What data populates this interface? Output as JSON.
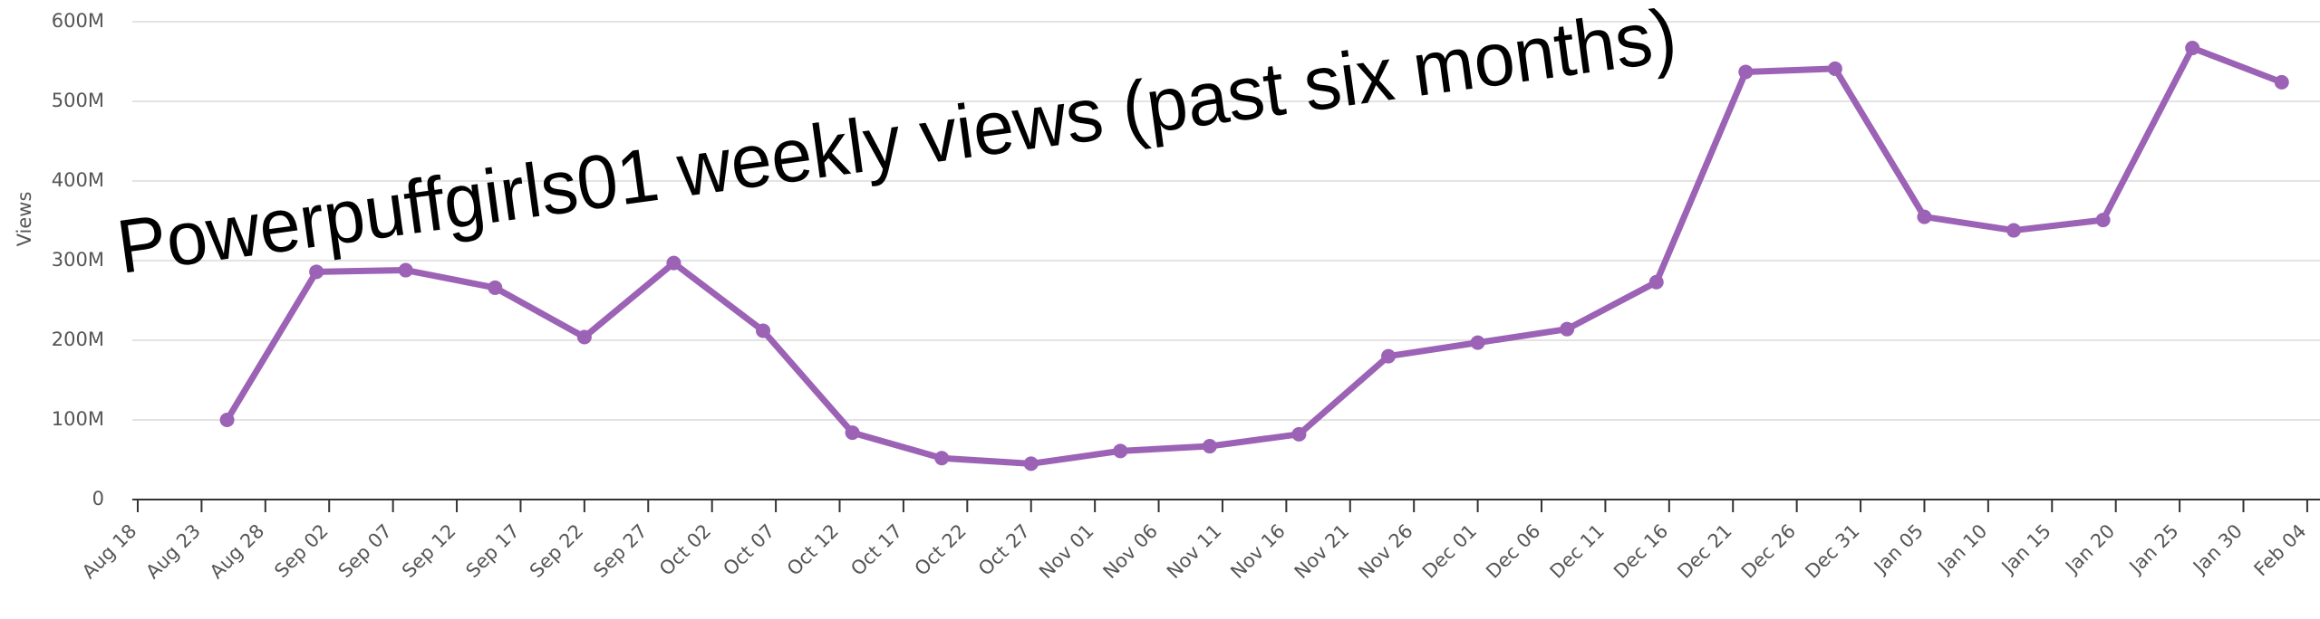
{
  "chart_data": {
    "type": "line",
    "title": "Powerpuffgirls01 weekly views (past six months)",
    "y_label": "Views",
    "x": [
      7,
      14,
      21,
      28,
      35,
      42,
      49,
      56,
      63,
      70,
      77,
      84,
      91,
      98,
      105,
      112,
      119,
      126,
      133,
      140,
      147,
      154,
      161,
      168
    ],
    "series": [
      {
        "name": "Views",
        "color": "#9b62b5",
        "values": [
          100000000,
          286000000,
          288000000,
          266000000,
          204000000,
          297000000,
          212000000,
          84000000,
          52000000,
          45000000,
          61000000,
          67000000,
          82000000,
          180000000,
          197000000,
          214000000,
          273000000,
          537000000,
          541000000,
          355000000,
          338000000,
          351000000,
          567000000,
          524000000
        ]
      }
    ],
    "xlim": [
      0,
      171
    ],
    "xticks": [
      {
        "value": 0,
        "label": "Aug 18"
      },
      {
        "value": 5,
        "label": "Aug 23"
      },
      {
        "value": 10,
        "label": "Aug 28"
      },
      {
        "value": 15,
        "label": "Sep 02"
      },
      {
        "value": 20,
        "label": "Sep 07"
      },
      {
        "value": 25,
        "label": "Sep 12"
      },
      {
        "value": 30,
        "label": "Sep 17"
      },
      {
        "value": 35,
        "label": "Sep 22"
      },
      {
        "value": 40,
        "label": "Sep 27"
      },
      {
        "value": 45,
        "label": "Oct 02"
      },
      {
        "value": 50,
        "label": "Oct 07"
      },
      {
        "value": 55,
        "label": "Oct 12"
      },
      {
        "value": 60,
        "label": "Oct 17"
      },
      {
        "value": 65,
        "label": "Oct 22"
      },
      {
        "value": 70,
        "label": "Oct 27"
      },
      {
        "value": 75,
        "label": "Nov 01"
      },
      {
        "value": 80,
        "label": "Nov 06"
      },
      {
        "value": 85,
        "label": "Nov 11"
      },
      {
        "value": 90,
        "label": "Nov 16"
      },
      {
        "value": 95,
        "label": "Nov 21"
      },
      {
        "value": 100,
        "label": "Nov 26"
      },
      {
        "value": 105,
        "label": "Dec 01"
      },
      {
        "value": 110,
        "label": "Dec 06"
      },
      {
        "value": 115,
        "label": "Dec 11"
      },
      {
        "value": 120,
        "label": "Dec 16"
      },
      {
        "value": 125,
        "label": "Dec 21"
      },
      {
        "value": 130,
        "label": "Dec 26"
      },
      {
        "value": 135,
        "label": "Dec 31"
      },
      {
        "value": 140,
        "label": "Jan 05"
      },
      {
        "value": 145,
        "label": "Jan 10"
      },
      {
        "value": 150,
        "label": "Jan 15"
      },
      {
        "value": 155,
        "label": "Jan 20"
      },
      {
        "value": 160,
        "label": "Jan 25"
      },
      {
        "value": 165,
        "label": "Jan 30"
      },
      {
        "value": 170,
        "label": "Feb 04"
      }
    ],
    "ylim": [
      0,
      600000000
    ],
    "yticks": [
      0,
      {
        "value": 100000000,
        "label": "100M"
      },
      {
        "value": 200000000,
        "label": "200M"
      },
      {
        "value": 300000000,
        "label": "300M"
      },
      {
        "value": 400000000,
        "label": "400M"
      },
      {
        "value": 500000000,
        "label": "500M"
      },
      {
        "value": 600000000,
        "label": "600M"
      }
    ],
    "grid": true
  }
}
